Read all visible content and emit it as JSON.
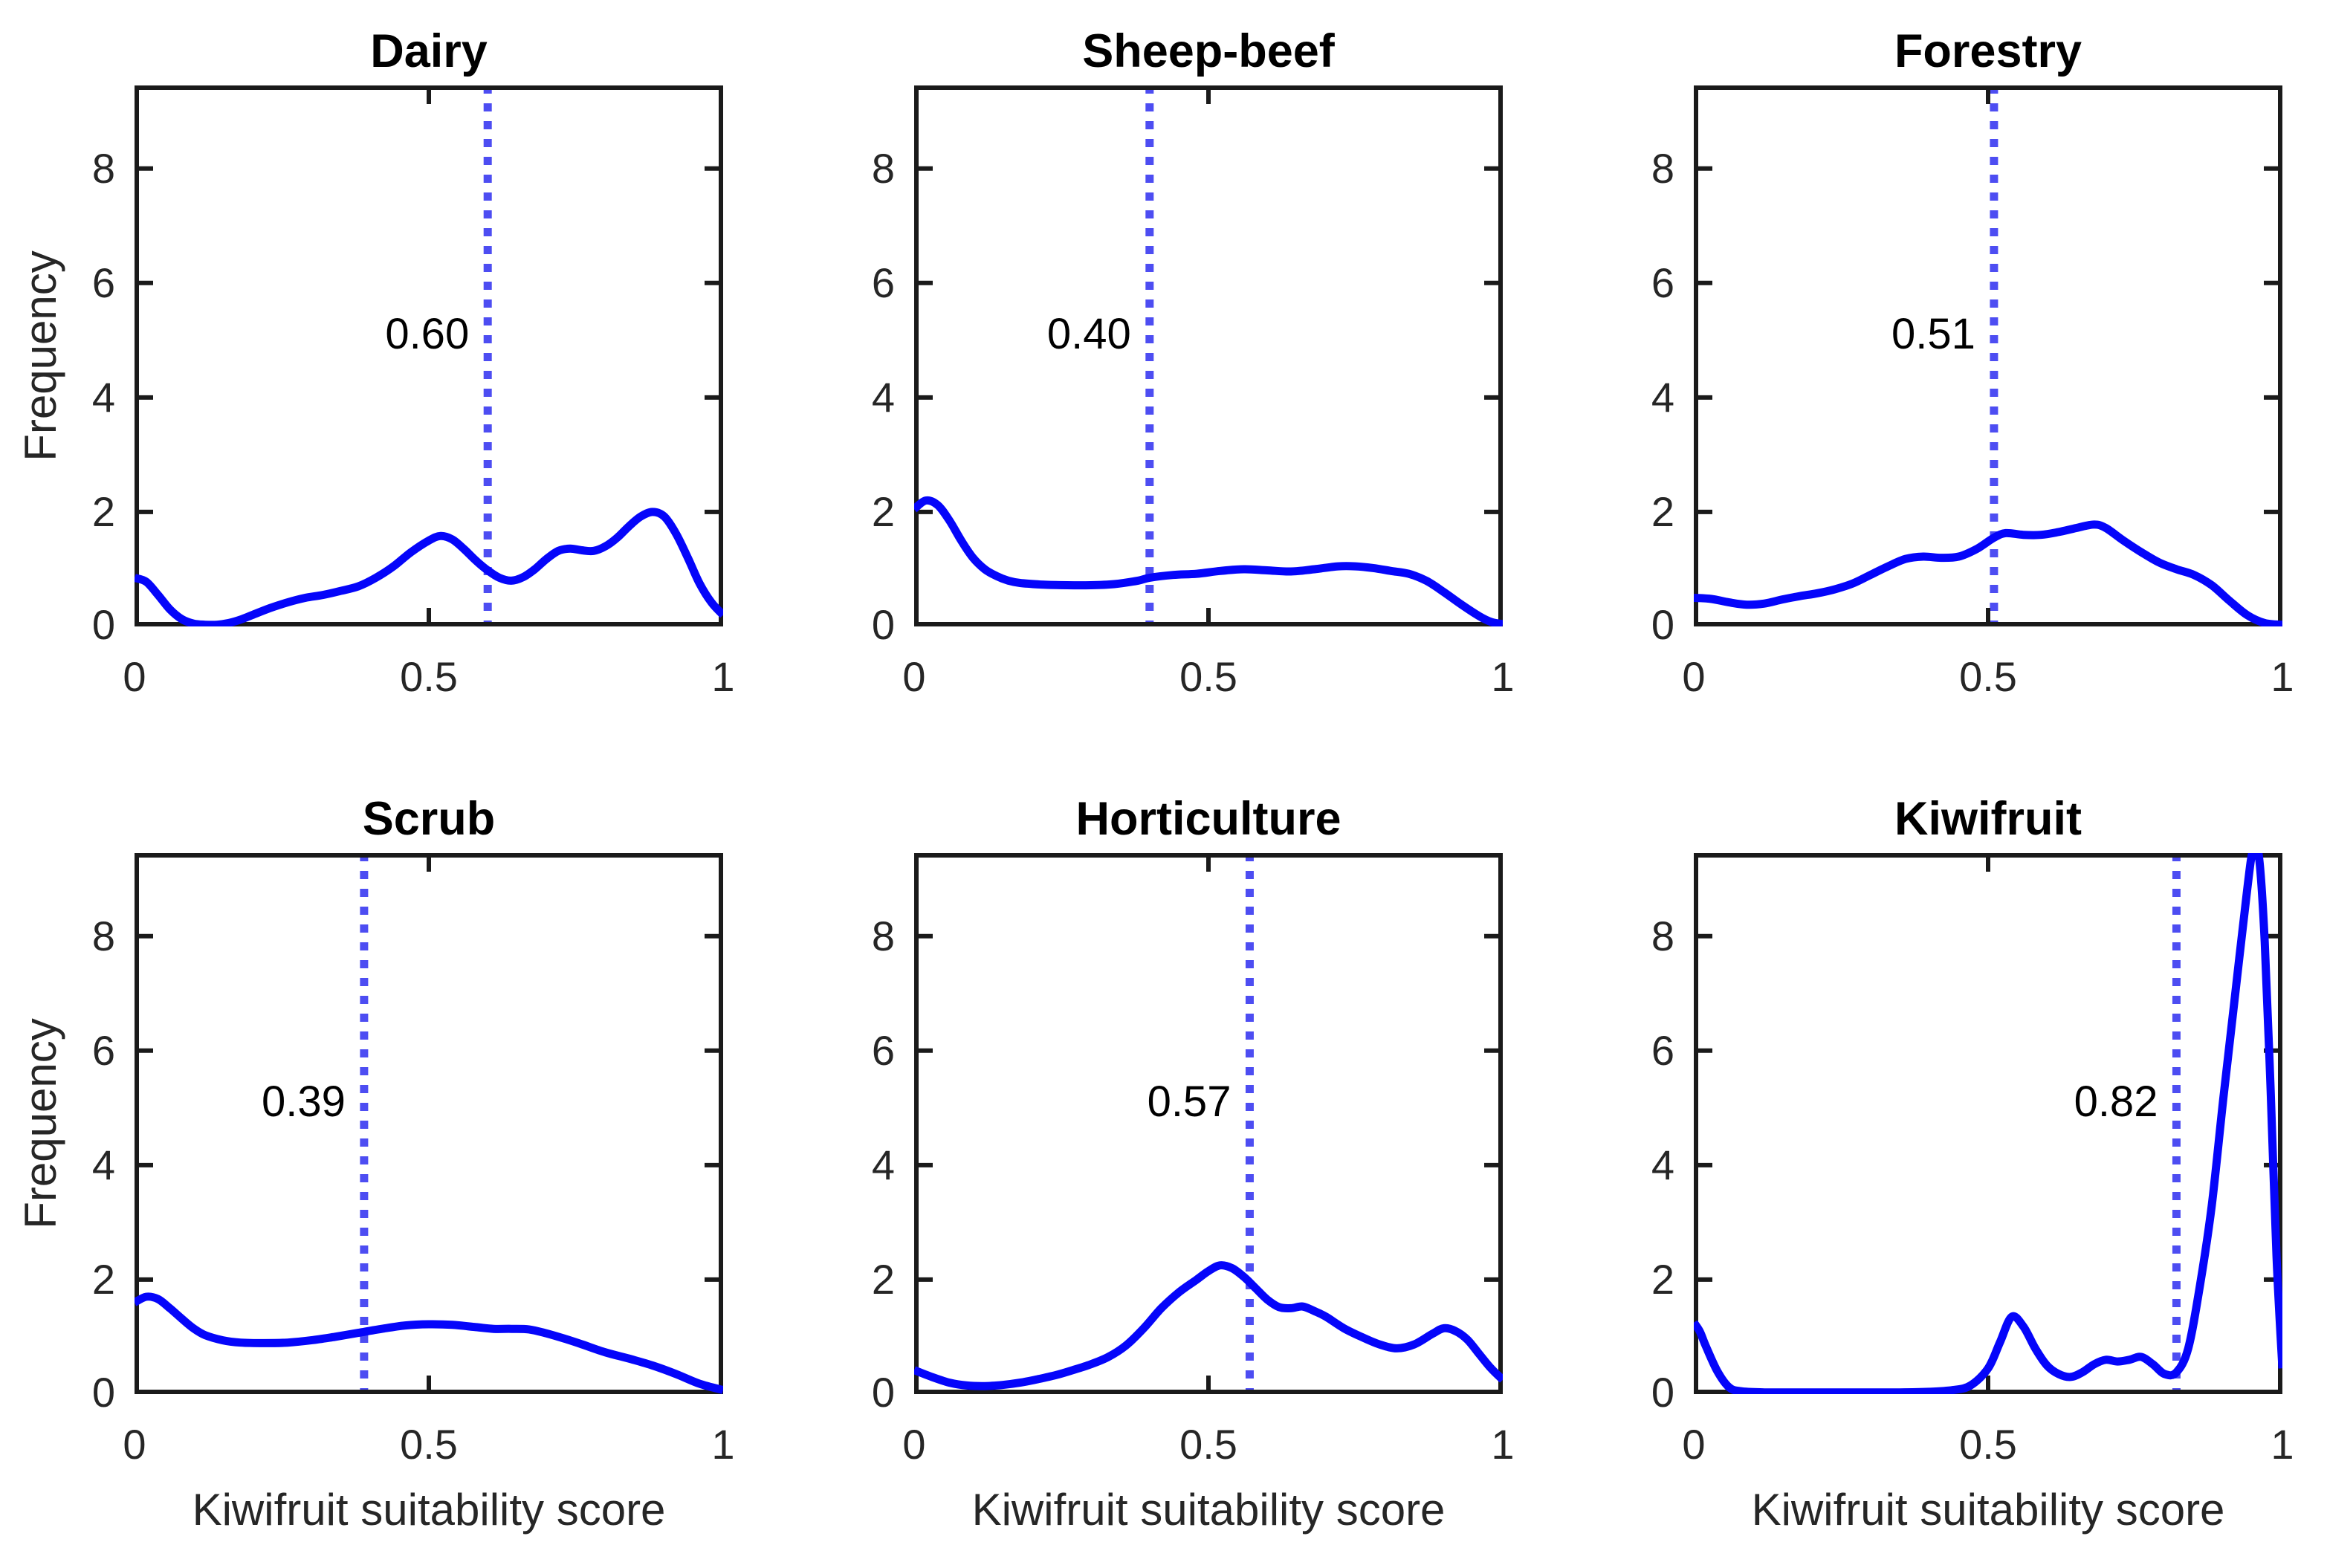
{
  "colors": {
    "curve": "#0505fa",
    "mean_line": "#4d4df2",
    "frame": "#1a1a1a",
    "tick_label": "#262626",
    "title": "#000000"
  },
  "chart_data": {
    "type": "line",
    "layout": "2x3 small multiples of kernel density curves",
    "xlabel": "Kiwifruit suitability score",
    "ylabel": "Frequency",
    "xlim": [
      0,
      1
    ],
    "ylim": [
      0,
      9.45
    ],
    "x_ticks": [
      0,
      0.5,
      1
    ],
    "y_ticks": [
      0,
      2,
      4,
      6,
      8
    ],
    "x_tick_labels": [
      "0",
      "0.5",
      "1"
    ],
    "y_tick_labels": [
      "0",
      "2",
      "4",
      "6",
      "8"
    ],
    "grid": false,
    "legend": "none",
    "mean_line_style": "dotted vertical line at panel mean",
    "panels": [
      {
        "title": "Dairy",
        "mean": 0.6,
        "mean_label": "0.60",
        "curve": [
          [
            0,
            0.85
          ],
          [
            0.02,
            0.78
          ],
          [
            0.04,
            0.55
          ],
          [
            0.06,
            0.3
          ],
          [
            0.08,
            0.13
          ],
          [
            0.1,
            0.05
          ],
          [
            0.12,
            0.03
          ],
          [
            0.14,
            0.03
          ],
          [
            0.16,
            0.06
          ],
          [
            0.18,
            0.12
          ],
          [
            0.2,
            0.2
          ],
          [
            0.23,
            0.32
          ],
          [
            0.26,
            0.42
          ],
          [
            0.29,
            0.5
          ],
          [
            0.32,
            0.55
          ],
          [
            0.35,
            0.62
          ],
          [
            0.38,
            0.7
          ],
          [
            0.41,
            0.85
          ],
          [
            0.44,
            1.05
          ],
          [
            0.47,
            1.3
          ],
          [
            0.5,
            1.5
          ],
          [
            0.52,
            1.58
          ],
          [
            0.54,
            1.52
          ],
          [
            0.56,
            1.35
          ],
          [
            0.58,
            1.15
          ],
          [
            0.6,
            0.98
          ],
          [
            0.62,
            0.85
          ],
          [
            0.64,
            0.8
          ],
          [
            0.66,
            0.86
          ],
          [
            0.68,
            1.0
          ],
          [
            0.7,
            1.18
          ],
          [
            0.72,
            1.32
          ],
          [
            0.74,
            1.36
          ],
          [
            0.76,
            1.33
          ],
          [
            0.78,
            1.32
          ],
          [
            0.8,
            1.4
          ],
          [
            0.82,
            1.55
          ],
          [
            0.84,
            1.75
          ],
          [
            0.86,
            1.92
          ],
          [
            0.88,
            2.0
          ],
          [
            0.9,
            1.92
          ],
          [
            0.92,
            1.62
          ],
          [
            0.94,
            1.2
          ],
          [
            0.96,
            0.75
          ],
          [
            0.98,
            0.42
          ],
          [
            1,
            0.2
          ]
        ]
      },
      {
        "title": "Sheep-beef",
        "mean": 0.4,
        "mean_label": "0.40",
        "curve": [
          [
            0,
            2.05
          ],
          [
            0.02,
            2.2
          ],
          [
            0.04,
            2.12
          ],
          [
            0.06,
            1.85
          ],
          [
            0.08,
            1.5
          ],
          [
            0.1,
            1.2
          ],
          [
            0.12,
            1.0
          ],
          [
            0.14,
            0.88
          ],
          [
            0.16,
            0.8
          ],
          [
            0.18,
            0.76
          ],
          [
            0.22,
            0.73
          ],
          [
            0.26,
            0.72
          ],
          [
            0.3,
            0.72
          ],
          [
            0.34,
            0.74
          ],
          [
            0.38,
            0.8
          ],
          [
            0.4,
            0.85
          ],
          [
            0.44,
            0.9
          ],
          [
            0.48,
            0.92
          ],
          [
            0.52,
            0.97
          ],
          [
            0.56,
            1.0
          ],
          [
            0.6,
            0.98
          ],
          [
            0.64,
            0.96
          ],
          [
            0.68,
            1.0
          ],
          [
            0.72,
            1.05
          ],
          [
            0.75,
            1.05
          ],
          [
            0.78,
            1.02
          ],
          [
            0.81,
            0.97
          ],
          [
            0.84,
            0.92
          ],
          [
            0.87,
            0.8
          ],
          [
            0.9,
            0.6
          ],
          [
            0.93,
            0.38
          ],
          [
            0.96,
            0.18
          ],
          [
            0.98,
            0.08
          ],
          [
            1,
            0.04
          ]
        ]
      },
      {
        "title": "Forestry",
        "mean": 0.51,
        "mean_label": "0.51",
        "curve": [
          [
            0,
            0.5
          ],
          [
            0.03,
            0.48
          ],
          [
            0.06,
            0.42
          ],
          [
            0.09,
            0.38
          ],
          [
            0.12,
            0.4
          ],
          [
            0.15,
            0.47
          ],
          [
            0.18,
            0.53
          ],
          [
            0.21,
            0.58
          ],
          [
            0.24,
            0.65
          ],
          [
            0.27,
            0.75
          ],
          [
            0.3,
            0.9
          ],
          [
            0.33,
            1.05
          ],
          [
            0.36,
            1.18
          ],
          [
            0.39,
            1.22
          ],
          [
            0.42,
            1.2
          ],
          [
            0.45,
            1.22
          ],
          [
            0.48,
            1.35
          ],
          [
            0.51,
            1.55
          ],
          [
            0.53,
            1.63
          ],
          [
            0.56,
            1.6
          ],
          [
            0.59,
            1.6
          ],
          [
            0.62,
            1.65
          ],
          [
            0.65,
            1.72
          ],
          [
            0.68,
            1.78
          ],
          [
            0.7,
            1.72
          ],
          [
            0.73,
            1.5
          ],
          [
            0.76,
            1.3
          ],
          [
            0.79,
            1.12
          ],
          [
            0.82,
            1.0
          ],
          [
            0.85,
            0.9
          ],
          [
            0.88,
            0.72
          ],
          [
            0.91,
            0.45
          ],
          [
            0.94,
            0.2
          ],
          [
            0.97,
            0.06
          ],
          [
            1,
            0.03
          ]
        ]
      },
      {
        "title": "Scrub",
        "mean": 0.39,
        "mean_label": "0.39",
        "curve": [
          [
            0,
            1.6
          ],
          [
            0.02,
            1.7
          ],
          [
            0.04,
            1.66
          ],
          [
            0.06,
            1.5
          ],
          [
            0.08,
            1.32
          ],
          [
            0.1,
            1.15
          ],
          [
            0.12,
            1.03
          ],
          [
            0.15,
            0.94
          ],
          [
            0.18,
            0.9
          ],
          [
            0.22,
            0.89
          ],
          [
            0.26,
            0.9
          ],
          [
            0.3,
            0.94
          ],
          [
            0.34,
            1.0
          ],
          [
            0.38,
            1.07
          ],
          [
            0.42,
            1.14
          ],
          [
            0.46,
            1.2
          ],
          [
            0.5,
            1.22
          ],
          [
            0.54,
            1.21
          ],
          [
            0.58,
            1.17
          ],
          [
            0.61,
            1.14
          ],
          [
            0.64,
            1.14
          ],
          [
            0.67,
            1.13
          ],
          [
            0.7,
            1.06
          ],
          [
            0.73,
            0.97
          ],
          [
            0.76,
            0.87
          ],
          [
            0.8,
            0.73
          ],
          [
            0.84,
            0.62
          ],
          [
            0.88,
            0.5
          ],
          [
            0.92,
            0.35
          ],
          [
            0.96,
            0.18
          ],
          [
            1,
            0.07
          ]
        ]
      },
      {
        "title": "Horticulture",
        "mean": 0.57,
        "mean_label": "0.57",
        "curve": [
          [
            0,
            0.42
          ],
          [
            0.03,
            0.3
          ],
          [
            0.06,
            0.2
          ],
          [
            0.09,
            0.15
          ],
          [
            0.12,
            0.14
          ],
          [
            0.15,
            0.16
          ],
          [
            0.18,
            0.2
          ],
          [
            0.21,
            0.26
          ],
          [
            0.24,
            0.33
          ],
          [
            0.27,
            0.42
          ],
          [
            0.3,
            0.52
          ],
          [
            0.33,
            0.65
          ],
          [
            0.36,
            0.85
          ],
          [
            0.39,
            1.15
          ],
          [
            0.42,
            1.5
          ],
          [
            0.45,
            1.78
          ],
          [
            0.48,
            2.0
          ],
          [
            0.5,
            2.15
          ],
          [
            0.52,
            2.25
          ],
          [
            0.54,
            2.2
          ],
          [
            0.56,
            2.05
          ],
          [
            0.58,
            1.85
          ],
          [
            0.6,
            1.65
          ],
          [
            0.62,
            1.52
          ],
          [
            0.64,
            1.5
          ],
          [
            0.66,
            1.53
          ],
          [
            0.68,
            1.45
          ],
          [
            0.7,
            1.35
          ],
          [
            0.73,
            1.15
          ],
          [
            0.76,
            1.0
          ],
          [
            0.79,
            0.87
          ],
          [
            0.82,
            0.8
          ],
          [
            0.85,
            0.87
          ],
          [
            0.88,
            1.05
          ],
          [
            0.9,
            1.15
          ],
          [
            0.92,
            1.1
          ],
          [
            0.94,
            0.95
          ],
          [
            0.96,
            0.7
          ],
          [
            0.98,
            0.45
          ],
          [
            1,
            0.25
          ]
        ]
      },
      {
        "title": "Kiwifruit",
        "mean": 0.82,
        "mean_label": "0.82",
        "curve": [
          [
            0,
            1.25
          ],
          [
            0.01,
            1.1
          ],
          [
            0.02,
            0.85
          ],
          [
            0.04,
            0.4
          ],
          [
            0.06,
            0.12
          ],
          [
            0.08,
            0.05
          ],
          [
            0.12,
            0.03
          ],
          [
            0.16,
            0.03
          ],
          [
            0.2,
            0.03
          ],
          [
            0.25,
            0.03
          ],
          [
            0.3,
            0.03
          ],
          [
            0.35,
            0.03
          ],
          [
            0.4,
            0.04
          ],
          [
            0.44,
            0.07
          ],
          [
            0.47,
            0.15
          ],
          [
            0.5,
            0.45
          ],
          [
            0.52,
            0.9
          ],
          [
            0.54,
            1.35
          ],
          [
            0.56,
            1.18
          ],
          [
            0.58,
            0.8
          ],
          [
            0.6,
            0.5
          ],
          [
            0.62,
            0.35
          ],
          [
            0.64,
            0.3
          ],
          [
            0.66,
            0.38
          ],
          [
            0.68,
            0.52
          ],
          [
            0.7,
            0.6
          ],
          [
            0.72,
            0.57
          ],
          [
            0.74,
            0.6
          ],
          [
            0.76,
            0.65
          ],
          [
            0.78,
            0.52
          ],
          [
            0.8,
            0.35
          ],
          [
            0.82,
            0.38
          ],
          [
            0.84,
            0.8
          ],
          [
            0.86,
            1.9
          ],
          [
            0.88,
            3.3
          ],
          [
            0.9,
            5.2
          ],
          [
            0.92,
            7.0
          ],
          [
            0.94,
            8.8
          ],
          [
            0.95,
            9.5
          ],
          [
            0.96,
            9.4
          ],
          [
            0.97,
            7.9
          ],
          [
            0.98,
            5.3
          ],
          [
            0.99,
            2.4
          ],
          [
            1,
            0.45
          ]
        ]
      }
    ]
  }
}
